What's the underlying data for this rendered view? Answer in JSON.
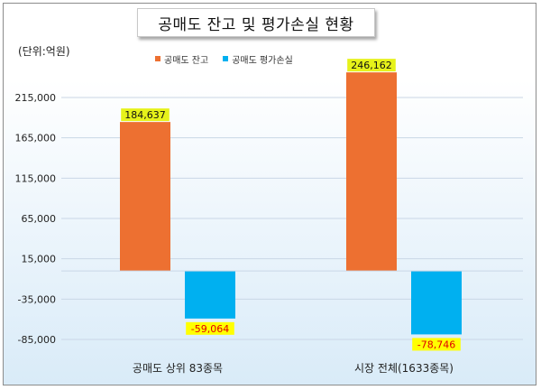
{
  "chart_data": {
    "type": "bar",
    "title": "공매도 잔고 및 평가손실 현황",
    "unit_label": "(단위:억원)",
    "categories": [
      "공매도 상위 83종목",
      "시장 전체(1633종목)"
    ],
    "series": [
      {
        "name": "공매도 잔고",
        "values": [
          184637,
          246162
        ],
        "labels": [
          "184,637",
          "246,162"
        ],
        "color": "#ed7031",
        "label_bg": "#e6f21a",
        "label_color": "#111111"
      },
      {
        "name": "공매도 평가손실",
        "values": [
          -59064,
          -78746
        ],
        "labels": [
          "-59,064",
          "-78,746"
        ],
        "color": "#00b0f0",
        "label_bg": "#ffff00",
        "label_color": "#e00000"
      }
    ],
    "y_ticks": [
      {
        "value": 215000,
        "label": "215,000"
      },
      {
        "value": 165000,
        "label": "165,000"
      },
      {
        "value": 115000,
        "label": "115,000"
      },
      {
        "value": 65000,
        "label": "65,000"
      },
      {
        "value": 15000,
        "label": "15,000"
      },
      {
        "value": -35000,
        "label": "-35,000"
      },
      {
        "value": -85000,
        "label": "-85,000"
      }
    ],
    "ylim": [
      -100000,
      265000
    ],
    "legend_position": "top",
    "grid": true
  }
}
